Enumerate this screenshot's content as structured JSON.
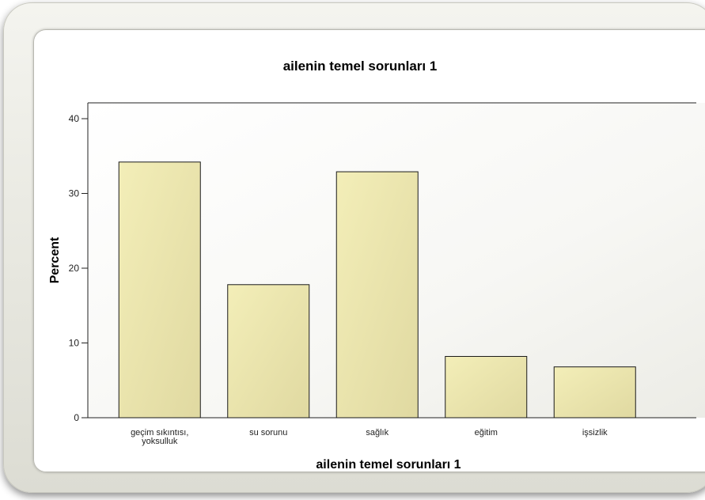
{
  "chart_data": {
    "type": "bar",
    "title": "ailenin temel sorunları 1",
    "xlabel": "ailenin temel sorunları 1",
    "ylabel": "Percent",
    "categories": [
      [
        "geçim sıkıntısı,",
        "yoksulluk"
      ],
      [
        "su sorunu"
      ],
      [
        "sağlık"
      ],
      [
        "eğitim"
      ],
      [
        "işsizlik"
      ]
    ],
    "values": [
      34.2,
      17.8,
      32.9,
      8.2,
      6.8
    ],
    "ylim": [
      0,
      40
    ],
    "yticks": [
      0,
      10,
      20,
      30,
      40
    ],
    "grid": false,
    "colors": {
      "bar_fill": "#e6dfa6",
      "bar_stroke": "#1a1a1a"
    }
  }
}
